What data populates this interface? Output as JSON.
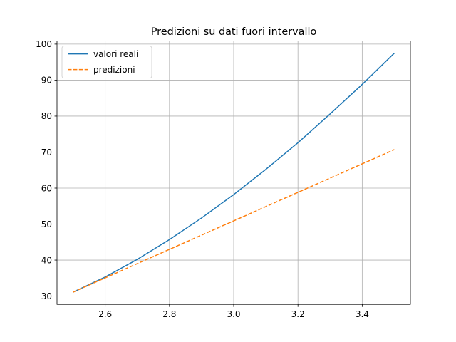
{
  "chart_data": {
    "type": "line",
    "title": "Predizioni su dati fuori intervallo",
    "xlabel": "",
    "ylabel": "",
    "xlim": [
      2.45,
      3.55
    ],
    "ylim": [
      27.7,
      100.85
    ],
    "xticks": [
      2.6,
      2.8,
      3.0,
      3.2,
      3.4
    ],
    "yticks": [
      30,
      40,
      50,
      60,
      70,
      80,
      90,
      100
    ],
    "xtick_labels": [
      "2.6",
      "2.8",
      "3.0",
      "3.2",
      "3.4"
    ],
    "ytick_labels": [
      "30",
      "40",
      "50",
      "60",
      "70",
      "80",
      "90",
      "100"
    ],
    "grid": true,
    "legend_position": "top-left",
    "series": [
      {
        "name": "valori reali",
        "color": "#1f77b4",
        "style": "solid",
        "x": [
          2.5,
          2.6,
          2.7,
          2.8,
          2.9,
          3.0,
          3.1,
          3.2,
          3.3,
          3.4,
          3.5
        ],
        "y": [
          31.1,
          35.3,
          40.2,
          45.7,
          51.7,
          58.2,
          65.2,
          72.6,
          80.6,
          88.8,
          97.5
        ]
      },
      {
        "name": "predizioni",
        "color": "#ff7f0e",
        "style": "dashed",
        "x": [
          2.5,
          3.5
        ],
        "y": [
          31.1,
          70.7
        ]
      }
    ]
  }
}
